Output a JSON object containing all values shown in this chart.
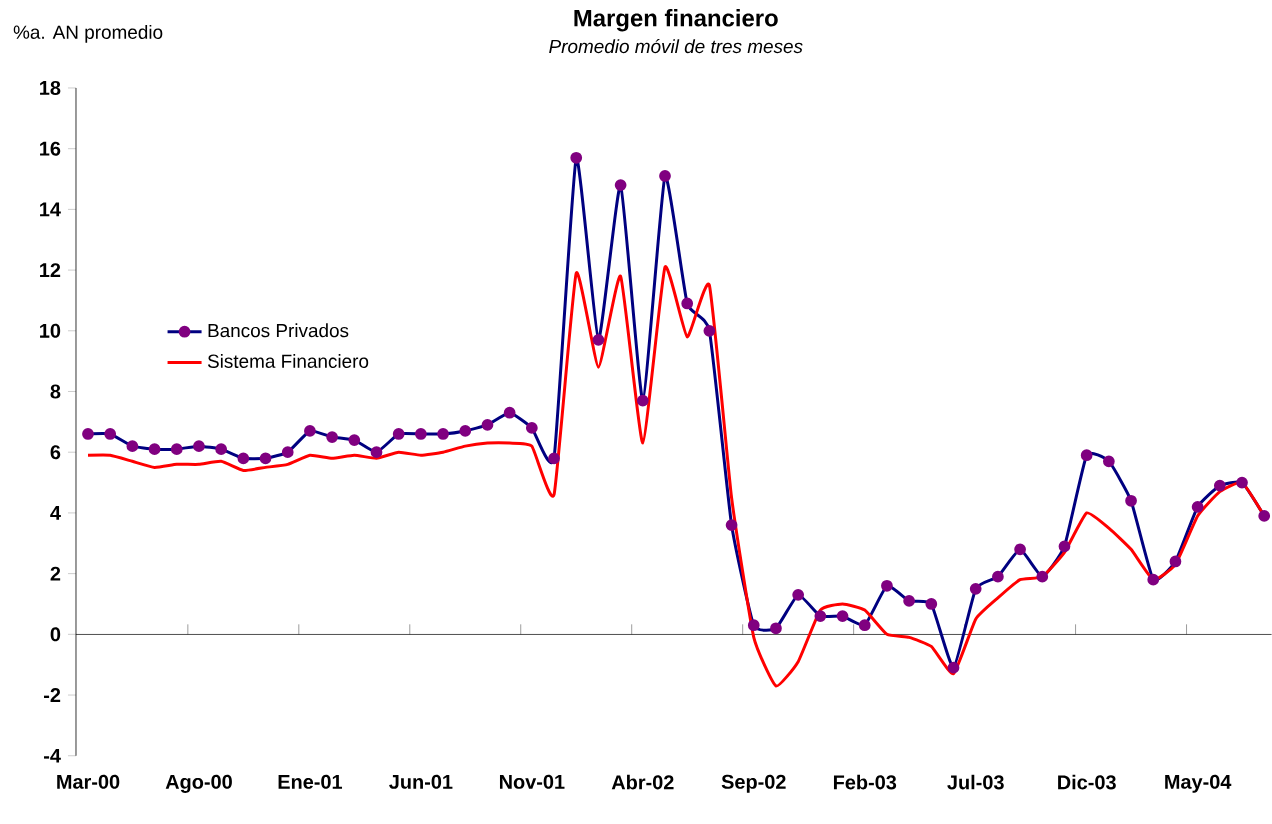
{
  "chart_data": {
    "type": "line",
    "title": "Margen financiero",
    "subtitle": "Promedio móvil de tres meses",
    "ylabel": "%a. AN promedio",
    "categories": [
      "Mar-00",
      null,
      null,
      null,
      null,
      "Ago-00",
      null,
      null,
      null,
      null,
      "Ene-01",
      null,
      null,
      null,
      null,
      "Jun-01",
      null,
      null,
      null,
      null,
      "Nov-01",
      null,
      null,
      null,
      null,
      "Abr-02",
      null,
      null,
      null,
      null,
      "Sep-02",
      null,
      null,
      null,
      null,
      "Feb-03",
      null,
      null,
      null,
      null,
      "Jul-03",
      null,
      null,
      null,
      null,
      "Dic-03",
      null,
      null,
      null,
      null,
      "May-04",
      null,
      null,
      null
    ],
    "series": [
      {
        "name": "Bancos Privados",
        "color": "#000080",
        "marker": "circle",
        "values": [
          6.6,
          6.6,
          6.2,
          6.1,
          6.1,
          6.2,
          6.1,
          5.8,
          5.8,
          6.0,
          6.7,
          6.5,
          6.4,
          6.0,
          6.6,
          6.6,
          6.6,
          6.7,
          6.9,
          7.3,
          6.8,
          5.8,
          15.7,
          9.7,
          14.8,
          7.7,
          15.1,
          10.9,
          10.0,
          3.6,
          0.3,
          0.2,
          1.3,
          0.6,
          0.6,
          0.3,
          1.6,
          1.1,
          1.0,
          -1.1,
          1.5,
          1.9,
          2.8,
          1.9,
          2.9,
          5.9,
          5.7,
          4.4,
          1.8,
          2.4,
          4.2,
          4.9,
          5.0,
          3.9
        ]
      },
      {
        "name": "Sistema Financiero",
        "color": "#ff0000",
        "marker": "none",
        "values": [
          5.9,
          5.9,
          5.7,
          5.5,
          5.6,
          5.6,
          5.7,
          5.4,
          5.5,
          5.6,
          5.9,
          5.8,
          5.9,
          5.8,
          6.0,
          5.9,
          6.0,
          6.2,
          6.3,
          6.3,
          6.2,
          4.6,
          11.9,
          8.8,
          11.8,
          6.3,
          12.1,
          9.8,
          11.5,
          4.5,
          -0.1,
          -1.7,
          -0.9,
          0.8,
          1.0,
          0.8,
          0.0,
          -0.1,
          -0.4,
          -1.3,
          0.5,
          1.2,
          1.8,
          1.9,
          2.7,
          4.0,
          3.5,
          2.8,
          1.8,
          2.3,
          3.9,
          4.7,
          5.0,
          3.9
        ]
      }
    ],
    "ylim": [
      -4,
      18
    ],
    "yticks": [
      -4,
      -2,
      0,
      2,
      4,
      6,
      8,
      10,
      12,
      14,
      16,
      18
    ],
    "legend": "left",
    "line_style": "solid"
  }
}
